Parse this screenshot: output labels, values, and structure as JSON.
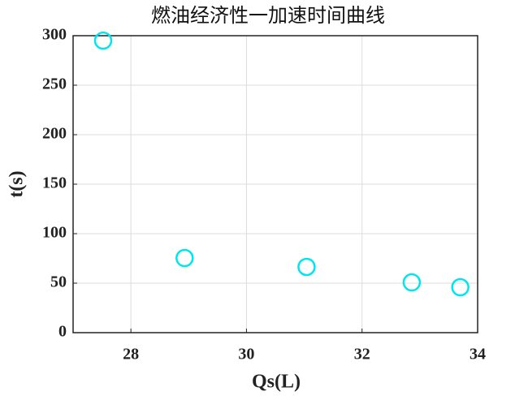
{
  "chart_data": {
    "type": "scatter",
    "title": "燃油经济性一加速时间曲线",
    "x_label": "Qs(L)",
    "y_label": "t(s)",
    "series": [
      {
        "color": "#00e5ee",
        "x": [
          27.52,
          28.93,
          31.04,
          32.86,
          33.7
        ],
        "values": [
          295,
          75.4,
          66.4,
          50.8,
          45.9
        ]
      }
    ],
    "xlim": [
      27,
      34
    ],
    "xticks": [
      28,
      30,
      32,
      34
    ],
    "ylim": [
      0,
      300
    ],
    "yticks": [
      0,
      50,
      100,
      150,
      200,
      250,
      300
    ],
    "grid": true
  }
}
